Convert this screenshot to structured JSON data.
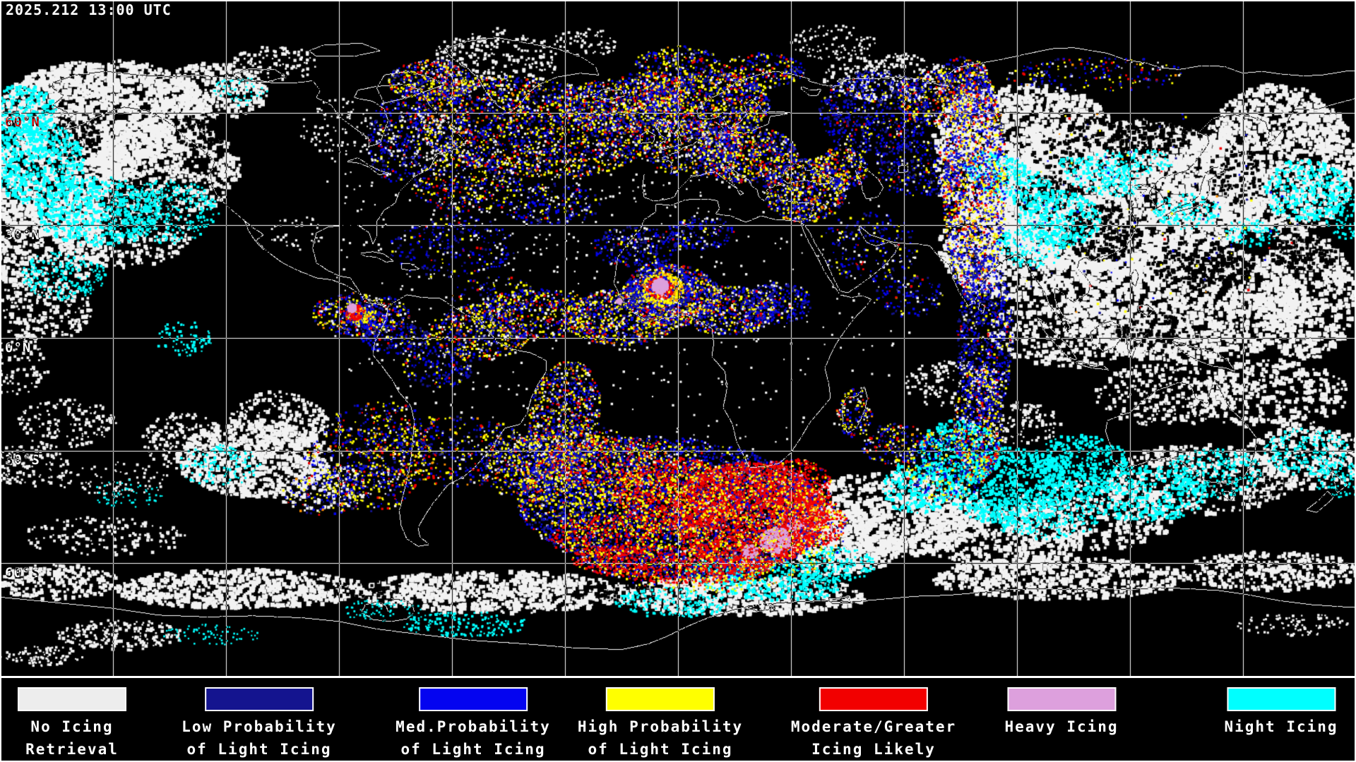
{
  "timestamp": "2025.212 13:00 UTC",
  "map": {
    "latitude_labels": [
      {
        "text": "60°N"
      },
      {
        "text": "30°N"
      },
      {
        "text": "0°N"
      },
      {
        "text": "30°S"
      },
      {
        "text": "60°S"
      }
    ],
    "grid": {
      "lon_spacing_deg": 30,
      "lat_spacing_deg": 30
    }
  },
  "legend": {
    "items": [
      {
        "label_line1": "No Icing",
        "label_line2": "Retrieval",
        "color": "#ededed"
      },
      {
        "label_line1": "Low Probability",
        "label_line2": "of Light Icing",
        "color": "#14148f"
      },
      {
        "label_line1": "Med.Probability",
        "label_line2": "of Light Icing",
        "color": "#0404f0"
      },
      {
        "label_line1": "High Probability",
        "label_line2": "of Light Icing",
        "color": "#ffff00"
      },
      {
        "label_line1": "Moderate/Greater",
        "label_line2": "Icing Likely",
        "color": "#f20000"
      },
      {
        "label_line1": "Heavy Icing",
        "label_line2": "",
        "color": "#dda0dd"
      },
      {
        "label_line1": "Night Icing",
        "label_line2": "",
        "color": "#00ffff"
      }
    ]
  },
  "colors": {
    "background": "#000000",
    "cloud": "#f2f2f2",
    "grid_and_coastline": "adaptive-black-or-white"
  }
}
